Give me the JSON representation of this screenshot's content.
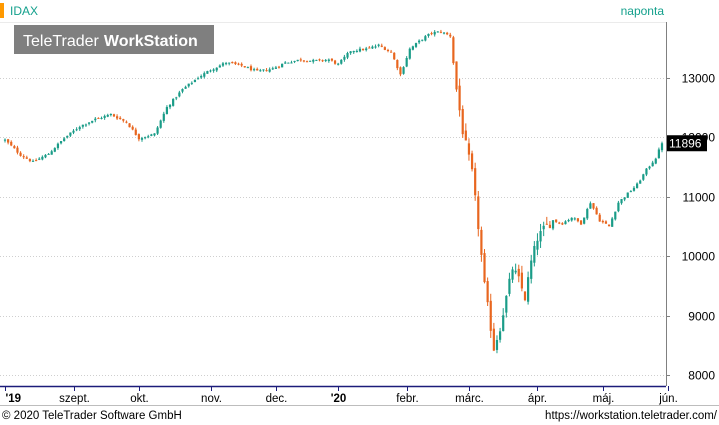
{
  "header": {
    "symbol": "IDAX",
    "period": "naponta",
    "logo_light": "TeleTrader",
    "logo_bold": "WorkStation"
  },
  "footer": {
    "copyright": "© 2020 TeleTrader Software GmbH",
    "url": "https://workstation.teletrader.com/"
  },
  "colors": {
    "up": "#1a9c88",
    "down": "#e8661f",
    "header_accent": "#ff9900",
    "header_text": "#13a08c",
    "last_badge_bg": "#000000",
    "last_badge_text": "#ffffff",
    "axis_bottom": "#1c1c7a",
    "gridline": "#cfcfcf"
  },
  "chart_data": {
    "type": "candlestick",
    "y_axis_side": "right",
    "yticks": [
      8000,
      9000,
      10000,
      11000,
      12000,
      13000
    ],
    "ylim": [
      7850,
      13900
    ],
    "last_value_label": "11896",
    "last_value": 11896,
    "xticks": [
      {
        "label": "'19",
        "day": 0,
        "bold": true
      },
      {
        "label": "szept.",
        "day": 22,
        "bold": false
      },
      {
        "label": "okt.",
        "day": 43,
        "bold": false
      },
      {
        "label": "nov.",
        "day": 66,
        "bold": false
      },
      {
        "label": "dec.",
        "day": 87,
        "bold": false
      },
      {
        "label": "'20",
        "day": 107,
        "bold": true
      },
      {
        "label": "febr.",
        "day": 129,
        "bold": false
      },
      {
        "label": "márc.",
        "day": 149,
        "bold": false
      },
      {
        "label": "ápr.",
        "day": 171,
        "bold": false
      },
      {
        "label": "máj.",
        "day": 192,
        "bold": false
      },
      {
        "label": "jún.",
        "day": 213,
        "bold": false
      }
    ],
    "path_points": [
      [
        0,
        11950
      ],
      [
        5,
        11700
      ],
      [
        9,
        11580
      ],
      [
        14,
        11720
      ],
      [
        19,
        11980
      ],
      [
        24,
        12180
      ],
      [
        29,
        12300
      ],
      [
        34,
        12380
      ],
      [
        39,
        12250
      ],
      [
        43,
        11980
      ],
      [
        48,
        12050
      ],
      [
        52,
        12500
      ],
      [
        57,
        12800
      ],
      [
        62,
        13000
      ],
      [
        66,
        13130
      ],
      [
        71,
        13250
      ],
      [
        76,
        13200
      ],
      [
        81,
        13100
      ],
      [
        86,
        13150
      ],
      [
        90,
        13250
      ],
      [
        95,
        13300
      ],
      [
        99,
        13280
      ],
      [
        104,
        13300
      ],
      [
        107,
        13220
      ],
      [
        111,
        13450
      ],
      [
        116,
        13480
      ],
      [
        120,
        13540
      ],
      [
        124,
        13430
      ],
      [
        127,
        13050
      ],
      [
        130,
        13480
      ],
      [
        134,
        13650
      ],
      [
        137,
        13750
      ],
      [
        140,
        13770
      ],
      [
        143,
        13700
      ],
      [
        145,
        12800
      ],
      [
        147,
        12100
      ],
      [
        150,
        11400
      ],
      [
        152,
        10500
      ],
      [
        154,
        9500
      ],
      [
        157,
        8450
      ],
      [
        159,
        8800
      ],
      [
        161,
        9300
      ],
      [
        163,
        9800
      ],
      [
        165,
        9600
      ],
      [
        167,
        9300
      ],
      [
        169,
        9900
      ],
      [
        171,
        10300
      ],
      [
        173,
        10450
      ],
      [
        176,
        10600
      ],
      [
        179,
        10550
      ],
      [
        182,
        10650
      ],
      [
        185,
        10550
      ],
      [
        188,
        10900
      ],
      [
        191,
        10600
      ],
      [
        194,
        10500
      ],
      [
        197,
        10900
      ],
      [
        200,
        11050
      ],
      [
        203,
        11200
      ],
      [
        206,
        11450
      ],
      [
        209,
        11650
      ],
      [
        211,
        11896
      ]
    ]
  }
}
